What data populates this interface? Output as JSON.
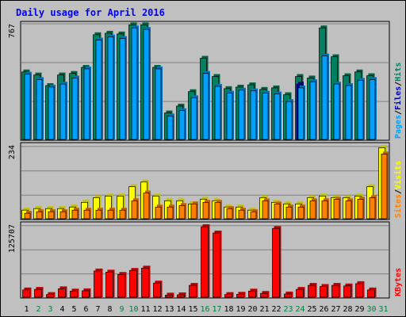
{
  "chart_data": {
    "type": "bar",
    "title": "Daily usage for April 2016",
    "days": [
      "1",
      "2",
      "3",
      "4",
      "5",
      "6",
      "7",
      "8",
      "9",
      "10",
      "11",
      "12",
      "13",
      "14",
      "15",
      "16",
      "17",
      "18",
      "19",
      "20",
      "21",
      "22",
      "23",
      "24",
      "25",
      "26",
      "27",
      "28",
      "29",
      "30",
      "31"
    ],
    "weekend_days": [
      "2",
      "3",
      "9",
      "10",
      "16",
      "17",
      "23",
      "24",
      "30",
      "31"
    ],
    "panels": {
      "top": {
        "max_label": "767",
        "ymax": 767,
        "series": [
          {
            "name": "Hits",
            "values": [
              450,
              430,
              360,
              430,
              440,
              480,
              695,
              705,
              700,
              760,
              760,
              480,
              180,
              225,
              320,
              540,
              420,
              340,
              350,
              365,
              335,
              345,
              300,
              420,
              410,
              740,
              550,
              425,
              450,
              425,
              0
            ]
          },
          {
            "name": "Files",
            "values": [
              0,
              0,
              0,
              0,
              0,
              0,
              0,
              0,
              0,
              0,
              0,
              0,
              0,
              0,
              0,
              0,
              0,
              0,
              0,
              0,
              0,
              0,
              0,
              370,
              0,
              0,
              0,
              0,
              0,
              0,
              0
            ]
          },
          {
            "name": "Pages",
            "values": [
              435,
              400,
              350,
              370,
              410,
              470,
              660,
              680,
              670,
              740,
              730,
              470,
              160,
              195,
              280,
              440,
              355,
              310,
              330,
              325,
              310,
              305,
              255,
              345,
              385,
              555,
              370,
              360,
              395,
              400,
              0
            ]
          }
        ],
        "legend": [
          {
            "name": "Pages",
            "color": "#00a0ff"
          },
          {
            "name": "Files",
            "color": "#0000c0"
          },
          {
            "name": "Hits",
            "color": "#008060"
          }
        ]
      },
      "middle": {
        "max_label": "234",
        "ymax": 234,
        "series": [
          {
            "name": "Visits",
            "values": [
              30,
              35,
              35,
              35,
              40,
              55,
              70,
              75,
              75,
              105,
              120,
              75,
              60,
              60,
              50,
              65,
              60,
              40,
              40,
              30,
              70,
              55,
              50,
              50,
              70,
              75,
              70,
              70,
              75,
              105,
              230
            ]
          },
          {
            "name": "Sites",
            "values": [
              20,
              25,
              25,
              25,
              30,
              30,
              30,
              30,
              30,
              60,
              85,
              40,
              40,
              45,
              50,
              55,
              55,
              35,
              30,
              25,
              60,
              50,
              40,
              40,
              60,
              60,
              65,
              60,
              65,
              70,
              210
            ]
          }
        ],
        "legend": [
          {
            "name": "Sites",
            "color": "#ff8000"
          },
          {
            "name": "Visits",
            "color": "#ffff00"
          }
        ]
      },
      "bottom": {
        "max_label": "125707",
        "ymax": 125707,
        "series": [
          {
            "name": "KBytes",
            "values": [
              14000,
              15000,
              6000,
              16000,
              12000,
              12500,
              47000,
              45000,
              41000,
              48000,
              52000,
              26000,
              5000,
              5500,
              22000,
              124000,
              113000,
              6000,
              6500,
              12000,
              8000,
              121000,
              7000,
              15000,
              22000,
              20000,
              22000,
              21000,
              25000,
              14000,
              0
            ]
          }
        ],
        "legend": [
          {
            "name": "KBytes",
            "color": "#ff0000"
          }
        ]
      }
    }
  }
}
